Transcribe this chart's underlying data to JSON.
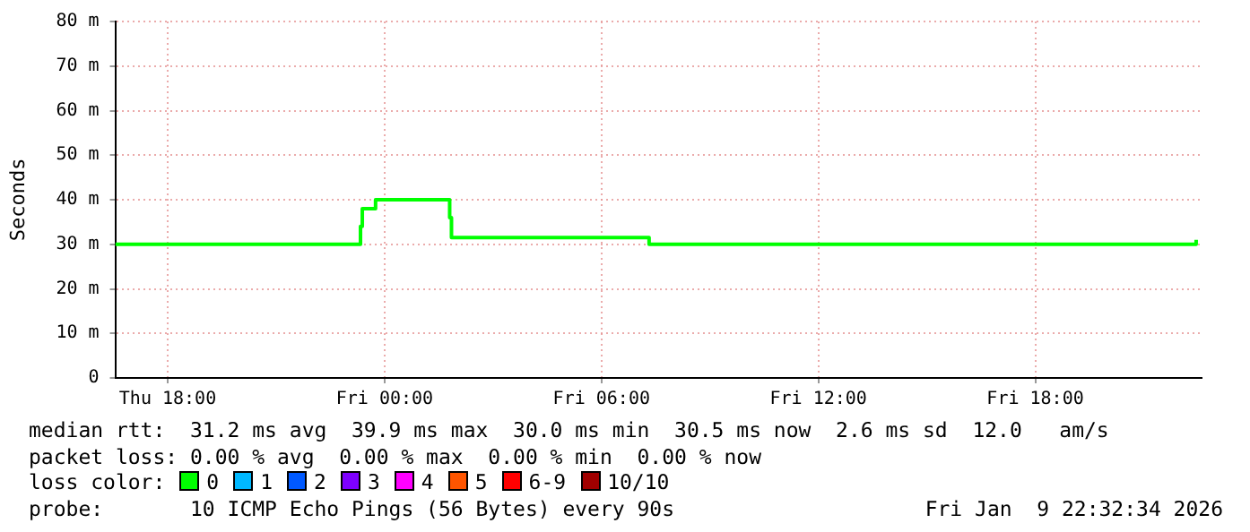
{
  "chart_data": {
    "type": "step",
    "ylabel": "Seconds",
    "x": [
      "2026-01-08T16:33",
      "2026-01-08T23:17",
      "2026-01-08T23:20",
      "2026-01-08T23:23",
      "2026-01-08T23:42",
      "2026-01-08T23:45",
      "2026-01-09T01:45",
      "2026-01-09T01:48",
      "2026-01-09T01:51",
      "2026-01-09T07:16",
      "2026-01-09T07:19",
      "2026-01-09T22:24",
      "2026-01-09T22:27"
    ],
    "series": [
      {
        "color": "#00ff00",
        "values": [
          30,
          30,
          34,
          38,
          38,
          40,
          40,
          36,
          31.5,
          31.5,
          30,
          30,
          31
        ]
      }
    ],
    "xlim": [
      "2026-01-08T16:33",
      "2026-01-09T22:36"
    ],
    "xticks": [
      {
        "value": "2026-01-08T18:00",
        "label": "Thu 18:00"
      },
      {
        "value": "2026-01-09T00:00",
        "label": "Fri 00:00"
      },
      {
        "value": "2026-01-09T06:00",
        "label": "Fri 06:00"
      },
      {
        "value": "2026-01-09T12:00",
        "label": "Fri 12:00"
      },
      {
        "value": "2026-01-09T18:00",
        "label": "Fri 18:00"
      }
    ],
    "ylim": [
      0,
      80
    ],
    "yticks": [
      0,
      {
        "value": 10,
        "label": "10 m"
      },
      {
        "value": 20,
        "label": "20 m"
      },
      {
        "value": 30,
        "label": "30 m"
      },
      {
        "value": 40,
        "label": "40 m"
      },
      {
        "value": 50,
        "label": "50 m"
      },
      {
        "value": 60,
        "label": "60 m"
      },
      {
        "value": 70,
        "label": "70 m"
      },
      {
        "value": 80,
        "label": "80 m"
      }
    ],
    "grid": true,
    "legend": false,
    "annotations": [
      "median rtt:  31.2 ms avg  39.9 ms max  30.0 ms min  30.5 ms now  2.6 ms sd  12.0   am/s",
      "packet loss: 0.00 % avg  0.00 % max  0.00 % min  0.00 % now",
      "loss color:",
      "0",
      "1",
      "2",
      "3",
      "4",
      "5",
      "6-9",
      "10/10",
      "probe:       10 ICMP Echo Pings (56 Bytes) every 90s",
      "Fri Jan  9 22:32:34 2026"
    ]
  }
}
